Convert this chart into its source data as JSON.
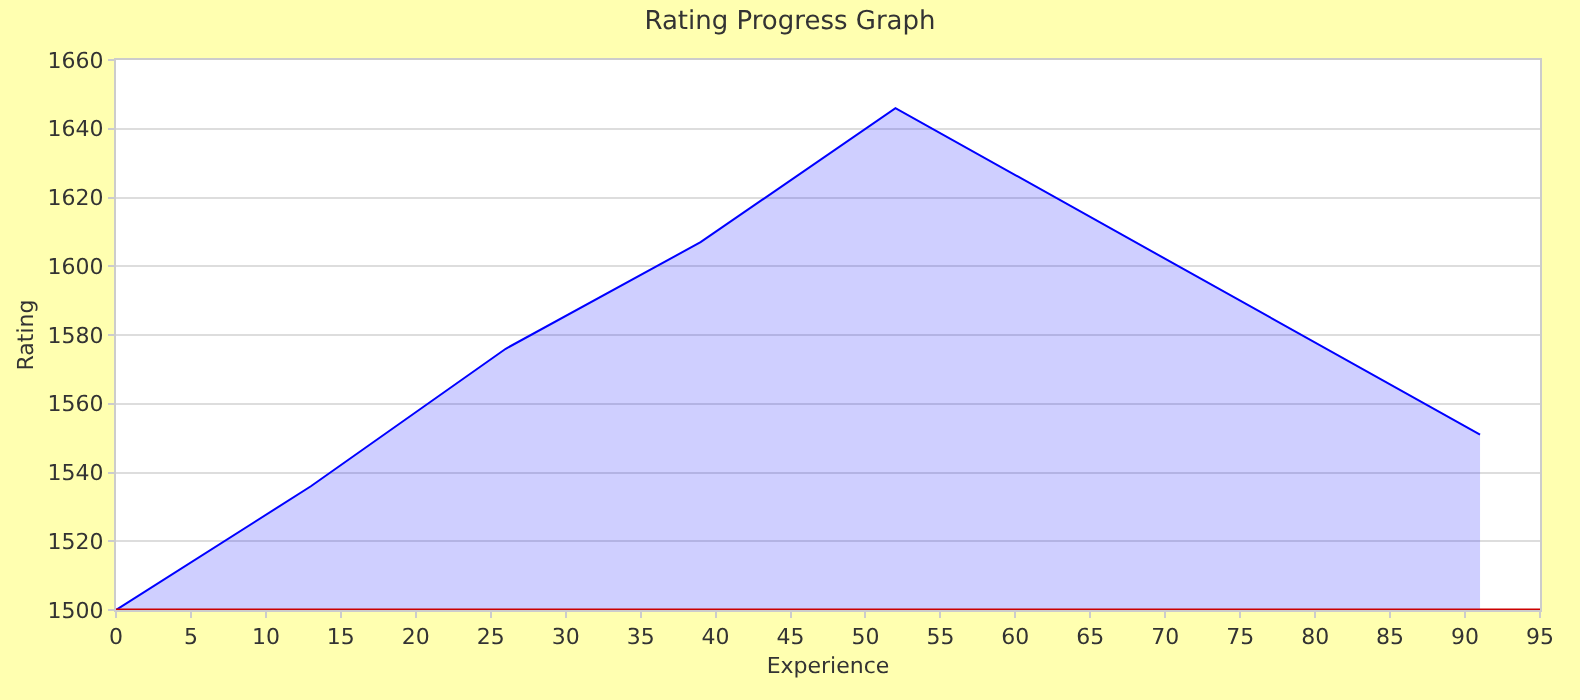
{
  "chart_data": {
    "type": "area",
    "title": "Rating Progress Graph",
    "xlabel": "Experience",
    "ylabel": "Rating",
    "x": [
      0,
      13,
      26,
      39,
      52,
      91
    ],
    "series": [
      {
        "color": "#0000ff",
        "values": [
          1500,
          1536,
          1576,
          1607,
          1646,
          1551
        ]
      }
    ],
    "xlim": [
      0,
      95
    ],
    "xticks": [
      0,
      5,
      10,
      15,
      20,
      25,
      30,
      35,
      40,
      45,
      50,
      55,
      60,
      65,
      70,
      75,
      80,
      85,
      90,
      95
    ],
    "ylim": [
      1500,
      1660
    ],
    "yticks": [
      1500,
      1520,
      1540,
      1560,
      1580,
      1600,
      1620,
      1640,
      1660
    ],
    "ref_lines": [
      {
        "axis": "y",
        "value": 1500,
        "color": "#cc0000"
      }
    ],
    "grid": "y",
    "marker": "none",
    "line_style": "solid"
  }
}
